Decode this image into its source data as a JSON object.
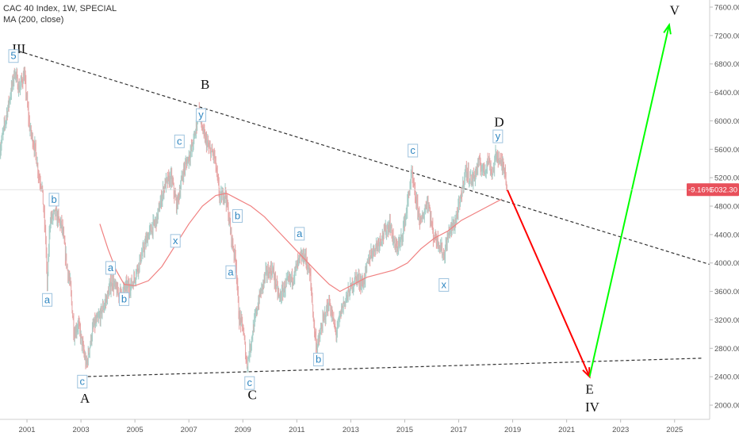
{
  "header": {
    "symbol_line": "CAC 40 Index, 1W, SPECIAL",
    "indicator_line": "MA (200, close)"
  },
  "price_tag": {
    "change": "-9.16%",
    "value": "5032.30"
  },
  "chart_data": {
    "type": "line",
    "title": "",
    "xlabel": "",
    "ylabel": "",
    "xlim": [
      2000.0,
      2026.3
    ],
    "ylim": [
      1800,
      7700
    ],
    "y_scale": "linear",
    "grid": false,
    "x_ticks": [
      "2001",
      "2003",
      "2005",
      "2007",
      "2009",
      "2011",
      "2013",
      "2015",
      "2017",
      "2019",
      "2021",
      "2023",
      "2025"
    ],
    "y_ticks": [
      "2000.00",
      "2400.00",
      "2800.00",
      "3200.00",
      "3600.00",
      "4000.00",
      "4400.00",
      "4800.00",
      "5200.00",
      "5600.00",
      "6000.00",
      "6400.00",
      "6800.00",
      "7200.00",
      "7600.00"
    ],
    "series": [
      {
        "kind": "weekly-price",
        "up_color": "#a8cfc9",
        "down_color": "#e8a7a7",
        "points": [
          [
            2000.0,
            5600
          ],
          [
            2000.3,
            6200
          ],
          [
            2000.55,
            6700
          ],
          [
            2000.7,
            6450
          ],
          [
            2000.9,
            6650
          ],
          [
            2001.1,
            5900
          ],
          [
            2001.3,
            5600
          ],
          [
            2001.45,
            5200
          ],
          [
            2001.55,
            5100
          ],
          [
            2001.7,
            4300
          ],
          [
            2001.75,
            3650
          ],
          [
            2001.85,
            4600
          ],
          [
            2002.05,
            4700
          ],
          [
            2002.3,
            4500
          ],
          [
            2002.5,
            3900
          ],
          [
            2002.6,
            3700
          ],
          [
            2002.75,
            3000
          ],
          [
            2002.9,
            3150
          ],
          [
            2003.05,
            2850
          ],
          [
            2003.2,
            2550
          ],
          [
            2003.45,
            3100
          ],
          [
            2003.7,
            3250
          ],
          [
            2003.95,
            3500
          ],
          [
            2004.15,
            3750
          ],
          [
            2004.4,
            3550
          ],
          [
            2004.65,
            3650
          ],
          [
            2004.9,
            3700
          ],
          [
            2005.2,
            4050
          ],
          [
            2005.5,
            4400
          ],
          [
            2005.8,
            4600
          ],
          [
            2006.1,
            5100
          ],
          [
            2006.35,
            5200
          ],
          [
            2006.55,
            4800
          ],
          [
            2006.8,
            5300
          ],
          [
            2007.1,
            5600
          ],
          [
            2007.25,
            5850
          ],
          [
            2007.35,
            6150
          ],
          [
            2007.55,
            5800
          ],
          [
            2007.75,
            5600
          ],
          [
            2007.95,
            5500
          ],
          [
            2008.15,
            4900
          ],
          [
            2008.35,
            5000
          ],
          [
            2008.6,
            4300
          ],
          [
            2008.75,
            4000
          ],
          [
            2008.85,
            3250
          ],
          [
            2009.0,
            3100
          ],
          [
            2009.15,
            2550
          ],
          [
            2009.35,
            3000
          ],
          [
            2009.6,
            3500
          ],
          [
            2009.85,
            3850
          ],
          [
            2010.1,
            3900
          ],
          [
            2010.35,
            3500
          ],
          [
            2010.6,
            3700
          ],
          [
            2010.85,
            3800
          ],
          [
            2011.1,
            4050
          ],
          [
            2011.3,
            4100
          ],
          [
            2011.5,
            3800
          ],
          [
            2011.65,
            3050
          ],
          [
            2011.75,
            2800
          ],
          [
            2011.95,
            3150
          ],
          [
            2012.2,
            3450
          ],
          [
            2012.45,
            3000
          ],
          [
            2012.7,
            3400
          ],
          [
            2012.95,
            3600
          ],
          [
            2013.2,
            3800
          ],
          [
            2013.45,
            3700
          ],
          [
            2013.7,
            4100
          ],
          [
            2013.95,
            4250
          ],
          [
            2014.2,
            4400
          ],
          [
            2014.45,
            4550
          ],
          [
            2014.65,
            4200
          ],
          [
            2014.85,
            4300
          ],
          [
            2015.05,
            4700
          ],
          [
            2015.25,
            5250
          ],
          [
            2015.4,
            4900
          ],
          [
            2015.6,
            4550
          ],
          [
            2015.85,
            4900
          ],
          [
            2016.05,
            4400
          ],
          [
            2016.25,
            4300
          ],
          [
            2016.45,
            4100
          ],
          [
            2016.65,
            4450
          ],
          [
            2016.85,
            4550
          ],
          [
            2017.05,
            4850
          ],
          [
            2017.25,
            5300
          ],
          [
            2017.5,
            5150
          ],
          [
            2017.75,
            5400
          ],
          [
            2017.95,
            5300
          ],
          [
            2018.1,
            5450
          ],
          [
            2018.25,
            5250
          ],
          [
            2018.4,
            5550
          ],
          [
            2018.55,
            5400
          ],
          [
            2018.7,
            5350
          ],
          [
            2018.8,
            5032
          ]
        ]
      },
      {
        "name": "MA (200, close)",
        "color": "#f08080",
        "points": [
          [
            2003.7,
            4550
          ],
          [
            2004.0,
            4200
          ],
          [
            2004.3,
            3900
          ],
          [
            2004.6,
            3700
          ],
          [
            2005.0,
            3680
          ],
          [
            2005.5,
            3750
          ],
          [
            2006.0,
            3950
          ],
          [
            2006.5,
            4250
          ],
          [
            2007.0,
            4550
          ],
          [
            2007.5,
            4800
          ],
          [
            2008.0,
            4950
          ],
          [
            2008.4,
            4980
          ],
          [
            2008.8,
            4900
          ],
          [
            2009.3,
            4800
          ],
          [
            2009.8,
            4650
          ],
          [
            2010.3,
            4450
          ],
          [
            2010.8,
            4250
          ],
          [
            2011.3,
            4050
          ],
          [
            2011.8,
            3850
          ],
          [
            2012.2,
            3700
          ],
          [
            2012.6,
            3600
          ],
          [
            2013.1,
            3700
          ],
          [
            2013.6,
            3800
          ],
          [
            2014.1,
            3850
          ],
          [
            2014.6,
            3900
          ],
          [
            2015.1,
            4000
          ],
          [
            2015.6,
            4200
          ],
          [
            2016.1,
            4350
          ],
          [
            2016.6,
            4450
          ],
          [
            2017.1,
            4600
          ],
          [
            2017.6,
            4700
          ],
          [
            2018.1,
            4800
          ],
          [
            2018.6,
            4900
          ]
        ]
      }
    ],
    "projections": [
      {
        "name": "down-leg",
        "color": "#ff0000",
        "points": [
          [
            2018.8,
            5032
          ],
          [
            2021.85,
            2400
          ]
        ]
      },
      {
        "name": "up-leg",
        "color": "#00ff00",
        "points": [
          [
            2021.85,
            2400
          ],
          [
            2024.8,
            7350
          ]
        ]
      }
    ],
    "trendlines": [
      {
        "name": "upper",
        "color": "#333333",
        "points": [
          [
            2000.7,
            6980
          ],
          [
            2026.3,
            3980
          ]
        ]
      },
      {
        "name": "lower",
        "color": "#333333",
        "points": [
          [
            2003.05,
            2400
          ],
          [
            2026.0,
            2660
          ]
        ]
      }
    ],
    "wave_labels": [
      {
        "text": "III",
        "boxed": false,
        "x": 2000.7,
        "y": 7020
      },
      {
        "text": "5",
        "boxed": true,
        "x": 2000.5,
        "y": 6900
      },
      {
        "text": "a",
        "boxed": true,
        "x": 2001.75,
        "y": 3470
      },
      {
        "text": "b",
        "boxed": true,
        "x": 2002.0,
        "y": 4880
      },
      {
        "text": "c",
        "boxed": true,
        "x": 2003.05,
        "y": 2320
      },
      {
        "text": "A",
        "boxed": false,
        "x": 2003.15,
        "y": 2100
      },
      {
        "text": "a",
        "boxed": true,
        "x": 2004.1,
        "y": 3920
      },
      {
        "text": "b",
        "boxed": true,
        "x": 2004.6,
        "y": 3480
      },
      {
        "text": "x",
        "boxed": true,
        "x": 2006.5,
        "y": 4300
      },
      {
        "text": "c",
        "boxed": true,
        "x": 2006.65,
        "y": 5700
      },
      {
        "text": "y",
        "boxed": true,
        "x": 2007.45,
        "y": 6070
      },
      {
        "text": "B",
        "boxed": false,
        "x": 2007.6,
        "y": 6520
      },
      {
        "text": "a",
        "boxed": true,
        "x": 2008.55,
        "y": 3860
      },
      {
        "text": "b",
        "boxed": true,
        "x": 2008.8,
        "y": 4650
      },
      {
        "text": "c",
        "boxed": true,
        "x": 2009.25,
        "y": 2300
      },
      {
        "text": "C",
        "boxed": false,
        "x": 2009.35,
        "y": 2150
      },
      {
        "text": "a",
        "boxed": true,
        "x": 2011.1,
        "y": 4400
      },
      {
        "text": "b",
        "boxed": true,
        "x": 2011.8,
        "y": 2630
      },
      {
        "text": "c",
        "boxed": true,
        "x": 2015.3,
        "y": 5570
      },
      {
        "text": "x",
        "boxed": true,
        "x": 2016.45,
        "y": 3680
      },
      {
        "text": "y",
        "boxed": true,
        "x": 2018.45,
        "y": 5770
      },
      {
        "text": "D",
        "boxed": false,
        "x": 2018.5,
        "y": 5990
      },
      {
        "text": "E",
        "boxed": false,
        "x": 2021.85,
        "y": 2230
      },
      {
        "text": "IV",
        "boxed": false,
        "x": 2021.95,
        "y": 1980
      },
      {
        "text": "V",
        "boxed": false,
        "x": 2025.0,
        "y": 7560
      }
    ]
  }
}
